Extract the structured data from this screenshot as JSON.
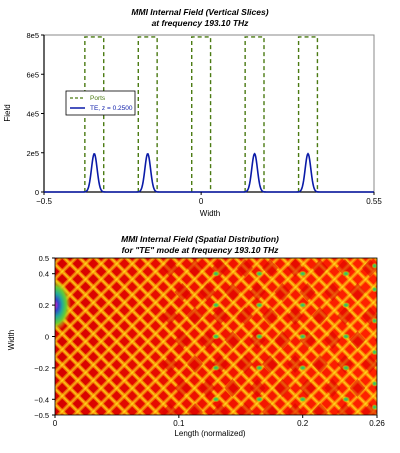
{
  "chart_data": [
    {
      "type": "line",
      "title": "MMI Internal Field (Vertical Slices)",
      "subtitle": "at frequency 193.10 THz",
      "xlabel": "Width",
      "ylabel": "Field",
      "xlim": [
        -0.5,
        0.55
      ],
      "ylim": [
        0,
        800000
      ],
      "x_ticks": [
        -0.5,
        0,
        0.55
      ],
      "x_tick_labels": [
        "−0.5",
        "0",
        "0.55"
      ],
      "y_ticks": [
        0,
        200000,
        400000,
        600000,
        800000
      ],
      "y_tick_labels": [
        "0",
        "2e5",
        "4e5",
        "6e5",
        "8e5"
      ],
      "grid": false,
      "legend_position": "left",
      "series": [
        {
          "name": "Ports",
          "style": "dashed-rect",
          "color": "#4a7a12",
          "port_centers": [
            -0.34,
            -0.17,
            0.0,
            0.17,
            0.34
          ],
          "port_half_width": 0.03,
          "height": 790000
        },
        {
          "name": "TE, z = 0.2500",
          "style": "gaussian-peaks",
          "color": "#0a1aa8",
          "peak_centers": [
            -0.34,
            -0.17,
            0.17,
            0.34
          ],
          "peak_height": 195000,
          "peak_sigma": 0.009
        }
      ]
    },
    {
      "type": "heatmap",
      "title": "MMI Internal Field (Spatial Distribution)",
      "subtitle": "for \"TE\" mode at frequency 193.10 THz",
      "xlabel": "Length (normalized)",
      "ylabel": "Width",
      "xlim": [
        0,
        0.26
      ],
      "ylim": [
        -0.5,
        0.5
      ],
      "x_ticks": [
        0,
        0.1,
        0.2,
        0.26
      ],
      "x_tick_labels": [
        "0",
        "0.1",
        "0.2",
        "0.26"
      ],
      "y_ticks": [
        -0.5,
        -0.4,
        -0.2,
        0,
        0.2,
        0.4,
        0.5
      ],
      "y_tick_labels": [
        "−0.5",
        "−0.4",
        "−0.2",
        "0",
        "0.2",
        "0.4",
        "0.5"
      ],
      "colormap": [
        "#cc0000",
        "#ff3300",
        "#ff9900",
        "#ffee00",
        "#66cc33",
        "#22aa99",
        "#3344cc"
      ],
      "source_position": [
        0,
        0.2
      ]
    }
  ]
}
